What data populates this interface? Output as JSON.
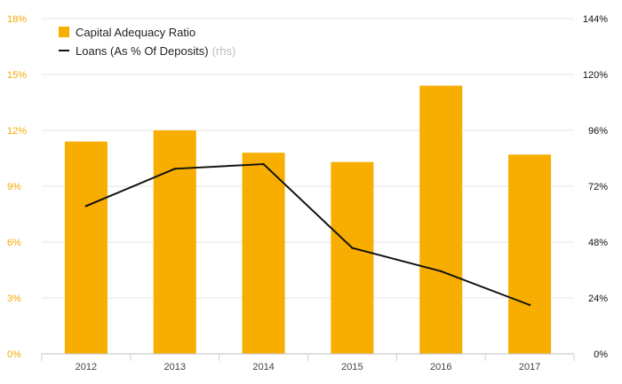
{
  "chart_data": {
    "type": "bar",
    "categories": [
      "2012",
      "2013",
      "2014",
      "2015",
      "2016",
      "2017"
    ],
    "series": [
      {
        "name": "Capital Adequacy Ratio",
        "kind": "bar",
        "axis": "left",
        "color": "#f7ae00",
        "values": [
          11.4,
          12.0,
          10.8,
          10.3,
          14.4,
          10.7
        ]
      },
      {
        "name": "Loans (As % Of Deposits)",
        "kind": "line",
        "axis": "right",
        "color": "#111111",
        "values": [
          63.5,
          79.5,
          81.5,
          45.5,
          35.5,
          21.0
        ]
      }
    ],
    "left_axis": {
      "ylim": [
        0,
        18
      ],
      "ticks": [
        "0%",
        "3%",
        "6%",
        "9%",
        "12%",
        "15%",
        "18%"
      ],
      "color": "#f5a800"
    },
    "right_axis": {
      "ylim": [
        0,
        144
      ],
      "ticks": [
        "0%",
        "24%",
        "48%",
        "72%",
        "96%",
        "120%",
        "144%"
      ],
      "color": "#111111"
    },
    "legend": {
      "position": "top-left",
      "bar_label": "Capital Adequacy Ratio",
      "line_label": "Loans (As % Of Deposits)",
      "line_suffix": "(rhs)"
    },
    "grid": true
  }
}
